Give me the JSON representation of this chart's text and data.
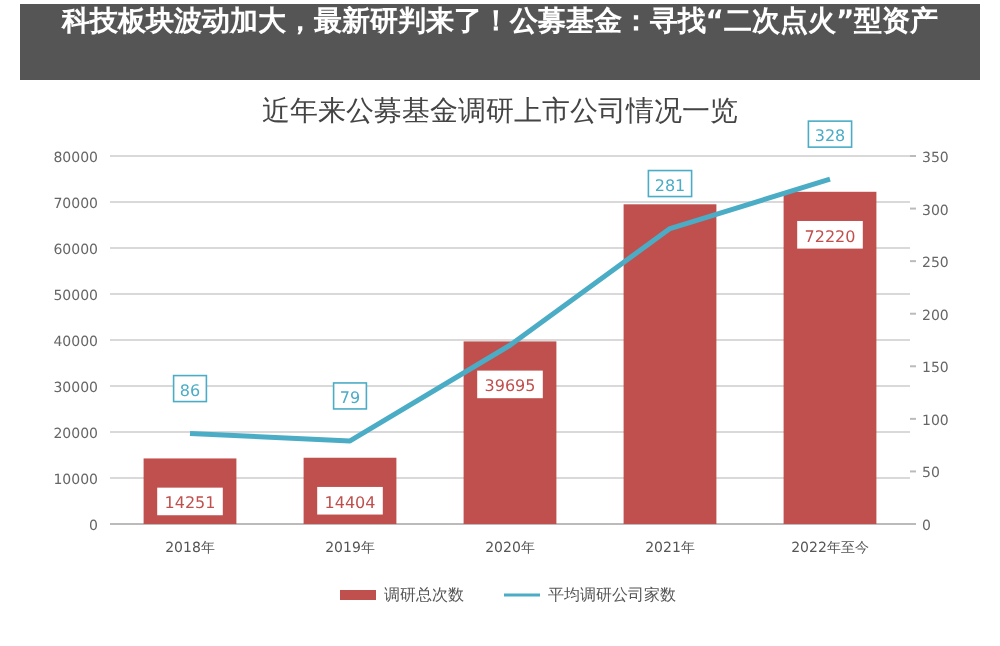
{
  "chart_data": {
    "type": "bar",
    "title": "近年来公募基金调研上市公司情况一览",
    "annotations": [
      "科技板块波动加大，最新研判来了！公募基金：寻找“二次点火”型资产"
    ],
    "categories": [
      "2018年",
      "2019年",
      "2020年",
      "2021年",
      "2022年至今"
    ],
    "series": [
      {
        "name": "调研总次数",
        "color": "#c0504d",
        "values": [
          14251,
          14404,
          39695,
          69500,
          72220
        ],
        "value_labels": [
          "14251",
          "14404",
          "39695",
          null,
          "72220"
        ]
      },
      {
        "name": "平均调研公司家数",
        "type": "line",
        "axis": "y2",
        "color": "#4bacc6",
        "values": [
          86,
          79,
          170,
          281,
          328
        ],
        "value_labels": [
          "86",
          "79",
          null,
          "281",
          "328"
        ]
      }
    ],
    "ylim": [
      0,
      80000
    ],
    "yticks": [
      0,
      10000,
      20000,
      30000,
      40000,
      50000,
      60000,
      70000,
      80000
    ],
    "y2lim": [
      0,
      350
    ],
    "y2ticks": [
      0,
      50,
      100,
      150,
      200,
      250,
      300,
      350
    ],
    "grid": "y",
    "legend": "bottom",
    "marker": "none",
    "line_style": "solid"
  }
}
